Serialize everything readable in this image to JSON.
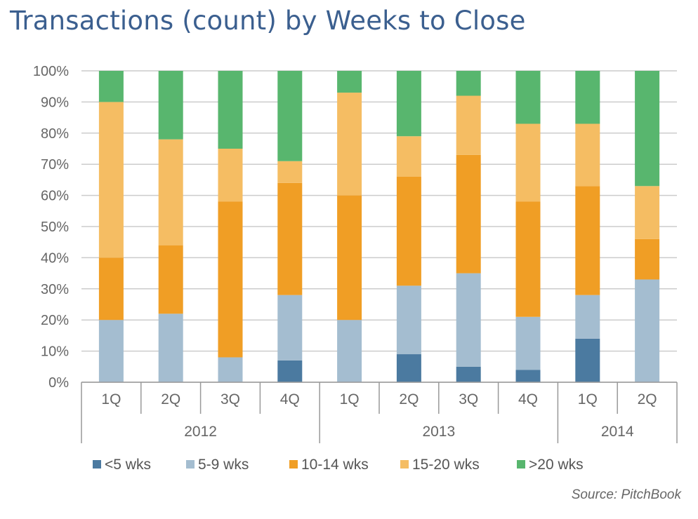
{
  "title": "Transactions (count) by Weeks to Close",
  "source": "Source: PitchBook",
  "colors": {
    "lt5": "#4b7aa0",
    "w5_9": "#a4bdd0",
    "w10_14": "#f09e25",
    "w15_20": "#f5bd63",
    "gt20": "#58b66e",
    "grid": "#cccccc",
    "axis": "#999999"
  },
  "chart_data": {
    "type": "bar",
    "stacked": true,
    "percent": true,
    "title": "Transactions (count) by Weeks to Close",
    "categories": [
      "1Q",
      "2Q",
      "3Q",
      "4Q",
      "1Q",
      "2Q",
      "3Q",
      "4Q",
      "1Q",
      "2Q"
    ],
    "groups": [
      {
        "label": "2012",
        "count": 4
      },
      {
        "label": "2013",
        "count": 4
      },
      {
        "label": "2014",
        "count": 2
      }
    ],
    "ylim": [
      0,
      100
    ],
    "yticks": [
      "0%",
      "10%",
      "20%",
      "30%",
      "40%",
      "50%",
      "60%",
      "70%",
      "80%",
      "90%",
      "100%"
    ],
    "grid": true,
    "legend": "bottom",
    "series": [
      {
        "name": "<5 wks",
        "key": "lt5",
        "values": [
          0,
          0,
          0,
          7,
          0,
          9,
          5,
          4,
          14,
          0
        ]
      },
      {
        "name": "5-9 wks",
        "key": "w5_9",
        "values": [
          20,
          22,
          8,
          21,
          20,
          22,
          30,
          17,
          14,
          33
        ]
      },
      {
        "name": "10-14 wks",
        "key": "w10_14",
        "values": [
          20,
          22,
          50,
          36,
          40,
          35,
          38,
          37,
          35,
          13
        ]
      },
      {
        "name": "15-20 wks",
        "key": "w15_20",
        "values": [
          50,
          34,
          17,
          7,
          33,
          13,
          19,
          25,
          20,
          17
        ]
      },
      {
        "name": ">20 wks",
        "key": "gt20",
        "values": [
          10,
          22,
          25,
          29,
          7,
          21,
          8,
          17,
          17,
          37
        ]
      }
    ]
  }
}
